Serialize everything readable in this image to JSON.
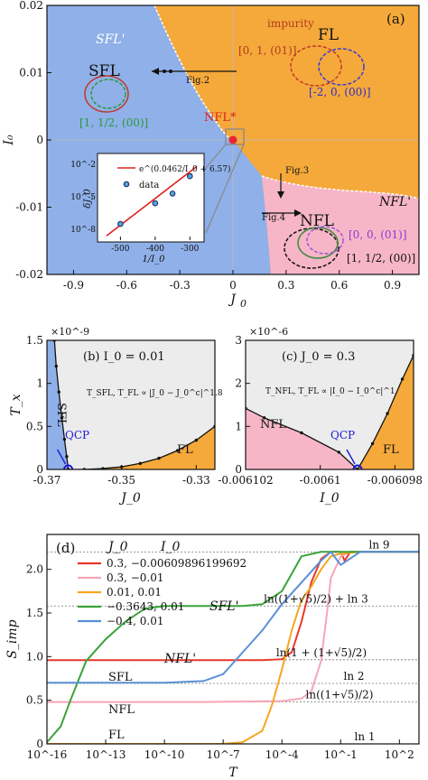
{
  "chart_data": [
    {
      "panel": "(a)",
      "type": "scatter",
      "xlabel": "J_0",
      "ylabel": "I_0",
      "xlim": [
        -1.05,
        1.05
      ],
      "ylim": [
        -0.02,
        0.02
      ],
      "xticks": [
        "-0.9",
        "-0.6",
        "-0.3",
        "0",
        "0.3",
        "0.6",
        "0.9"
      ],
      "yticks": [
        "0.02",
        "0.01",
        "0",
        "-0.01",
        "-0.02"
      ],
      "regions": [
        {
          "label": "SFL'",
          "color": "#8fb0e8"
        },
        {
          "label": "FL",
          "color": "#f5a93a"
        },
        {
          "label": "NFL'",
          "color": "#f7b6c8"
        },
        {
          "label": "SFL",
          "color": "#8fb0e8"
        },
        {
          "label": "NFL",
          "color": "#f7b6c8"
        }
      ],
      "phase_boundary_upper": {
        "x": [
          -0.45,
          -0.35,
          -0.25,
          -0.15,
          -0.08,
          0.0
        ],
        "y": [
          0.02,
          0.015,
          0.01,
          0.006,
          0.003,
          0.0
        ]
      },
      "phase_boundary_lower": {
        "x": [
          0.0,
          0.1,
          0.3,
          0.5,
          0.7,
          0.9,
          1.05
        ],
        "y": [
          0.0,
          -0.004,
          -0.006,
          -0.0068,
          -0.0075,
          -0.008,
          -0.0085
        ]
      },
      "annotations": [
        {
          "text": "NFL*",
          "x": 0.0,
          "y": 0.0
        },
        {
          "text": "impurity"
        },
        {
          "text": "[0, 1, (01)]"
        },
        {
          "text": "[-2, 0, (00)]"
        },
        {
          "text": "[1, 1/2, (00)]"
        },
        {
          "text": "[0, 0, (01)]"
        },
        {
          "text": "[1, 1/2, (00)]"
        },
        {
          "text": "Fig.2"
        },
        {
          "text": "Fig.3"
        },
        {
          "text": "Fig.4"
        }
      ],
      "inset": {
        "xlabel": "1/I_0",
        "ylabel": "δJ_0",
        "xticks": [
          "-500",
          "-400",
          "-300"
        ],
        "yticks": [
          "10^-2",
          "10^-5",
          "10^-8"
        ],
        "legend": [
          "e^(0.0462/I_0 + 6.57)",
          "data"
        ],
        "data_x": [
          -500,
          -400,
          -350,
          -300
        ],
        "data_log10_y": [
          -7.5,
          -5.6,
          -4.7,
          -3.1
        ]
      }
    },
    {
      "panel": "(b)",
      "title": "I_0 = 0.01",
      "type": "line",
      "xlabel": "J_0",
      "ylabel": "T_x",
      "y_scale": "×10^-9",
      "xlim": [
        -0.37,
        -0.325
      ],
      "ylim": [
        0,
        1.5
      ],
      "xticks": [
        "-0.37",
        "-0.35",
        "-0.33"
      ],
      "yticks": [
        "0",
        "0.5",
        "1",
        "1.5"
      ],
      "qcp_x": -0.3643,
      "left_branch": {
        "x": [
          -0.368,
          -0.3675,
          -0.3668,
          -0.366,
          -0.3653,
          -0.3647,
          -0.3643
        ],
        "y": [
          1.5,
          1.2,
          0.9,
          0.6,
          0.35,
          0.15,
          0.0
        ]
      },
      "right_branch": {
        "x": [
          -0.3643,
          -0.36,
          -0.355,
          -0.35,
          -0.345,
          -0.34,
          -0.335,
          -0.33,
          -0.325
        ],
        "y": [
          0.0,
          0.0,
          0.01,
          0.03,
          0.07,
          0.13,
          0.22,
          0.34,
          0.5
        ]
      },
      "labels": [
        "SFL",
        "FL",
        "QCP",
        "T_SFL, T_FL ∝ |J_0 − J_0^c|^1.8"
      ]
    },
    {
      "panel": "(c)",
      "title": "J_0 = 0.3",
      "type": "line",
      "xlabel": "I_0",
      "ylabel": "",
      "y_scale": "×10^-6",
      "xlim": [
        -0.006102,
        -0.0060975
      ],
      "ylim": [
        0,
        3
      ],
      "xticks": [
        "-0.006102",
        "-0.0061",
        "-0.006098"
      ],
      "yticks": [
        "0",
        "1",
        "2",
        "3"
      ],
      "qcp_x": -0.006099,
      "left_branch": {
        "x": [
          -0.006102,
          -0.0061015,
          -0.0061005,
          -0.0060995,
          -0.006099
        ],
        "y": [
          1.42,
          1.2,
          0.85,
          0.4,
          0.0
        ]
      },
      "right_branch": {
        "x": [
          -0.006099,
          -0.0060986,
          -0.0060982,
          -0.0060978,
          -0.0060975
        ],
        "y": [
          0.0,
          0.6,
          1.3,
          2.1,
          2.65
        ]
      },
      "labels": [
        "NFL",
        "FL",
        "QCP",
        "T_NFL, T_FL ∝ |I_0 − I_0^c|^1"
      ]
    },
    {
      "panel": "(d)",
      "type": "line",
      "xlabel": "T",
      "ylabel": "S_imp",
      "x_scale": "log",
      "xlim_log10": [
        -16,
        3
      ],
      "ylim": [
        0,
        2.4
      ],
      "xticks": [
        "10^-16",
        "10^-13",
        "10^-10",
        "10^-7",
        "10^-4",
        "10^-1",
        "10^2"
      ],
      "yticks": [
        "0",
        "0.5",
        "1.0",
        "1.5",
        "2.0"
      ],
      "legend_header": [
        "J_0",
        "I_0"
      ],
      "series": [
        {
          "name": "0.3, −0.00609896199692",
          "color": "#e8382c",
          "x_log10": [
            -16,
            -10,
            -5,
            -4,
            -3.5,
            -3,
            -2.5,
            -2,
            -1.5,
            -1,
            -0.8,
            -0.5,
            0,
            3
          ],
          "y": [
            0.96,
            0.96,
            0.96,
            0.97,
            1.05,
            1.4,
            1.85,
            2.12,
            2.2,
            2.2,
            2.1,
            2.2,
            2.2,
            2.2
          ]
        },
        {
          "name": "0.3, −0.01",
          "color": "#f6a5b8",
          "x_log10": [
            -16,
            -8,
            -4,
            -3,
            -2.5,
            -2,
            -1.7,
            -1.5,
            -1,
            -0.5,
            0,
            3
          ],
          "y": [
            0.48,
            0.48,
            0.49,
            0.52,
            0.6,
            0.95,
            1.5,
            1.9,
            2.15,
            2.2,
            2.2,
            2.2
          ]
        },
        {
          "name": "0.01, 0.01",
          "color": "#f5a623",
          "x_log10": [
            -16,
            -7,
            -6,
            -5,
            -4.5,
            -4,
            -3.5,
            -3,
            -2.5,
            -2,
            -1.5,
            -1,
            0,
            3
          ],
          "y": [
            0,
            0,
            0.02,
            0.15,
            0.45,
            0.85,
            1.3,
            1.65,
            1.8,
            2.0,
            2.15,
            2.18,
            2.2,
            2.2
          ]
        },
        {
          "name": "−0.3643, 0.01",
          "color": "#3aa33a",
          "x_log10": [
            -16,
            -15.3,
            -14.8,
            -14,
            -13,
            -12,
            -11,
            -10,
            -8,
            -6,
            -5,
            -4,
            -3.5,
            -3,
            -2,
            -1,
            0,
            3
          ],
          "y": [
            0.02,
            0.2,
            0.5,
            0.95,
            1.2,
            1.4,
            1.55,
            1.58,
            1.58,
            1.58,
            1.6,
            1.75,
            1.95,
            2.15,
            2.2,
            2.2,
            2.2,
            2.2
          ]
        },
        {
          "name": "−0.4, 0.01",
          "color": "#5b8fd6",
          "x_log10": [
            -16,
            -10,
            -8,
            -7,
            -6,
            -5,
            -4,
            -3,
            -2,
            -1.5,
            -1,
            0,
            3
          ],
          "y": [
            0.7,
            0.7,
            0.72,
            0.8,
            1.05,
            1.3,
            1.6,
            1.85,
            2.1,
            2.2,
            2.05,
            2.2,
            2.2
          ]
        }
      ],
      "reference_lines": [
        {
          "y": 2.197,
          "label": "ln 9"
        },
        {
          "y": 1.58,
          "label": "ln((1+√5)/2) + ln 3"
        },
        {
          "y": 0.964,
          "label": "ln(1 + (1+√5)/2)"
        },
        {
          "y": 0.693,
          "label": "ln 2"
        },
        {
          "y": 0.481,
          "label": "ln((1+√5)/2)"
        },
        {
          "y": 0.0,
          "label": "ln 1"
        }
      ],
      "curve_labels": [
        "SFL'",
        "NFL'",
        "SFL",
        "NFL",
        "FL"
      ]
    }
  ]
}
